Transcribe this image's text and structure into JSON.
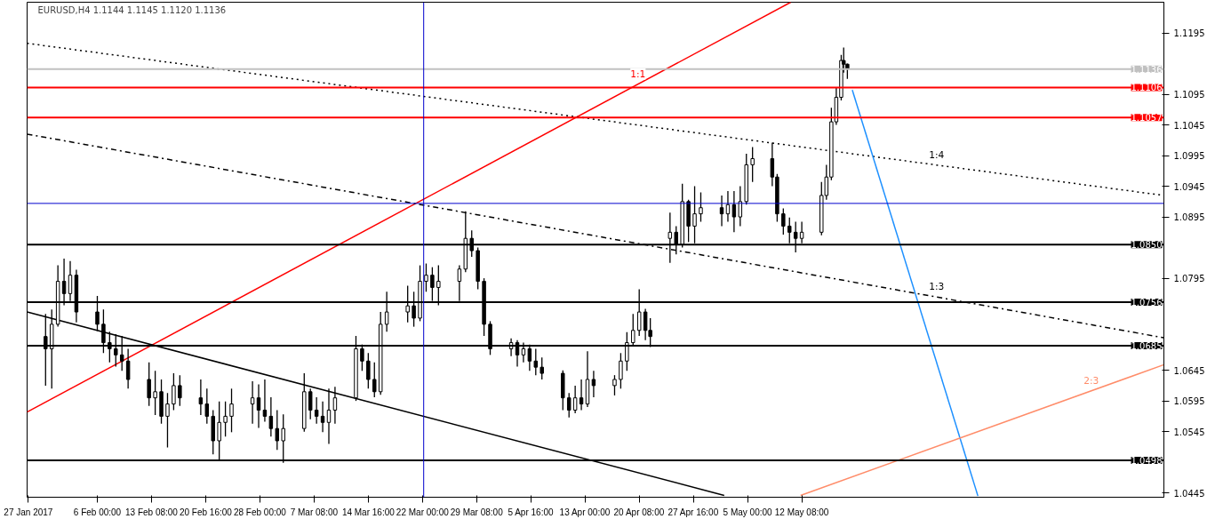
{
  "chart_data": {
    "type": "candlestick",
    "title": "EURUSD,H4  1.1144 1.1145 1.1120 1.1136",
    "x": [
      "2017-01-30T00:00",
      "2017-01-30T20:00",
      "2017-01-31T16:00",
      "2017-02-01T12:00",
      "2017-02-02T08:00",
      "2017-02-03T04:00",
      "2017-02-06T00:00",
      "2017-02-06T20:00",
      "2017-02-07T16:00",
      "2017-02-08T12:00",
      "2017-02-09T08:00",
      "2017-02-10T04:00",
      "2017-02-13T00:00",
      "2017-02-13T20:00",
      "2017-02-14T16:00",
      "2017-02-15T12:00",
      "2017-02-16T08:00",
      "2017-02-17T04:00",
      "2017-02-20T00:00",
      "2017-02-20T20:00",
      "2017-02-21T16:00",
      "2017-02-22T12:00",
      "2017-02-23T08:00",
      "2017-02-24T04:00",
      "2017-02-27T00:00",
      "2017-02-27T20:00",
      "2017-02-28T16:00",
      "2017-03-01T12:00",
      "2017-03-02T08:00",
      "2017-03-03T04:00",
      "2017-03-06T00:00",
      "2017-03-06T20:00",
      "2017-03-07T16:00",
      "2017-03-08T12:00",
      "2017-03-09T08:00",
      "2017-03-10T04:00",
      "2017-03-13T00:00",
      "2017-03-13T20:00",
      "2017-03-14T16:00",
      "2017-03-15T12:00",
      "2017-03-16T08:00",
      "2017-03-17T04:00",
      "2017-03-20T00:00",
      "2017-03-20T20:00",
      "2017-03-21T16:00",
      "2017-03-22T12:00",
      "2017-03-23T08:00",
      "2017-03-24T04:00",
      "2017-03-27T00:00",
      "2017-03-27T20:00",
      "2017-03-28T16:00",
      "2017-03-29T12:00",
      "2017-03-30T08:00",
      "2017-03-31T04:00",
      "2017-04-03T00:00",
      "2017-04-03T20:00",
      "2017-04-04T16:00",
      "2017-04-05T12:00",
      "2017-04-06T08:00",
      "2017-04-07T04:00",
      "2017-04-10T00:00",
      "2017-04-10T20:00",
      "2017-04-11T16:00",
      "2017-04-12T12:00",
      "2017-04-13T08:00",
      "2017-04-14T04:00",
      "2017-04-17T00:00",
      "2017-04-17T20:00",
      "2017-04-18T16:00",
      "2017-04-19T12:00",
      "2017-04-20T08:00",
      "2017-04-21T04:00",
      "2017-04-21T20:00",
      "2017-04-24T12:00",
      "2017-04-25T08:00",
      "2017-04-26T04:00",
      "2017-04-27T00:00",
      "2017-04-27T20:00",
      "2017-04-28T16:00",
      "2017-05-01T12:00",
      "2017-05-02T08:00",
      "2017-05-03T04:00",
      "2017-05-04T00:00",
      "2017-05-04T20:00",
      "2017-05-05T16:00",
      "2017-05-08T08:00",
      "2017-05-09T00:00",
      "2017-05-09T20:00",
      "2017-05-10T16:00",
      "2017-05-11T12:00",
      "2017-05-12T08:00",
      "2017-05-15T00:00",
      "2017-05-15T16:00",
      "2017-05-16T08:00",
      "2017-05-17T00:00",
      "2017-05-17T16:00",
      "2017-05-18T00:00",
      "2017-05-18T12:00"
    ],
    "ohlc": [
      [
        1.07,
        1.0737,
        1.062,
        1.068
      ],
      [
        1.068,
        1.0744,
        1.0615,
        1.072
      ],
      [
        1.072,
        1.0816,
        1.0716,
        1.079
      ],
      [
        1.079,
        1.0827,
        1.0751,
        1.077
      ],
      [
        1.077,
        1.0823,
        1.0758,
        1.08
      ],
      [
        1.08,
        1.0809,
        1.0723,
        1.074
      ],
      [
        1.074,
        1.0766,
        1.0709,
        1.072
      ],
      [
        1.072,
        1.0744,
        1.0673,
        1.069
      ],
      [
        1.069,
        1.0708,
        1.0658,
        1.068
      ],
      [
        1.068,
        1.0704,
        1.0651,
        1.067
      ],
      [
        1.067,
        1.0701,
        1.0644,
        1.066
      ],
      [
        1.066,
        1.068,
        1.0615,
        1.063
      ],
      [
        1.063,
        1.0658,
        1.0587,
        1.06
      ],
      [
        1.06,
        1.0644,
        1.0572,
        1.061
      ],
      [
        1.061,
        1.063,
        1.0558,
        1.057
      ],
      [
        1.057,
        1.0608,
        1.0519,
        1.059
      ],
      [
        1.059,
        1.064,
        1.058,
        1.062
      ],
      [
        1.062,
        1.0637,
        1.0587,
        1.06
      ],
      [
        1.06,
        1.063,
        1.0572,
        1.059
      ],
      [
        1.059,
        1.0615,
        1.0558,
        1.057
      ],
      [
        1.057,
        1.058,
        1.0508,
        1.053
      ],
      [
        1.053,
        1.0594,
        1.0498,
        1.056
      ],
      [
        1.056,
        1.0594,
        1.0537,
        1.057
      ],
      [
        1.057,
        1.0615,
        1.0544,
        1.059
      ],
      [
        1.059,
        1.0627,
        1.0558,
        1.06
      ],
      [
        1.06,
        1.0622,
        1.0551,
        1.058
      ],
      [
        1.058,
        1.063,
        1.0561,
        1.057
      ],
      [
        1.057,
        1.0601,
        1.0537,
        1.055
      ],
      [
        1.055,
        1.058,
        1.0515,
        1.053
      ],
      [
        1.053,
        1.0573,
        1.0494,
        1.055
      ],
      [
        1.055,
        1.064,
        1.0545,
        1.061
      ],
      [
        1.061,
        1.0615,
        1.0565,
        1.058
      ],
      [
        1.058,
        1.0601,
        1.0558,
        1.057
      ],
      [
        1.057,
        1.0594,
        1.0544,
        1.056
      ],
      [
        1.056,
        1.0615,
        1.0525,
        1.058
      ],
      [
        1.058,
        1.0618,
        1.0558,
        1.06
      ],
      [
        1.06,
        1.0701,
        1.0595,
        1.068
      ],
      [
        1.068,
        1.0687,
        1.0644,
        1.066
      ],
      [
        1.066,
        1.0673,
        1.0615,
        1.063
      ],
      [
        1.063,
        1.0658,
        1.0601,
        1.061
      ],
      [
        1.061,
        1.074,
        1.0605,
        1.072
      ],
      [
        1.072,
        1.0773,
        1.0708,
        1.074
      ],
      [
        1.074,
        1.0783,
        1.0723,
        1.075
      ],
      [
        1.075,
        1.0773,
        1.0716,
        1.073
      ],
      [
        1.073,
        1.0816,
        1.0725,
        1.079
      ],
      [
        1.079,
        1.0819,
        1.0773,
        1.08
      ],
      [
        1.08,
        1.0813,
        1.0758,
        1.078
      ],
      [
        1.078,
        1.0816,
        1.0751,
        1.079
      ],
      [
        1.079,
        1.0816,
        1.0758,
        1.081
      ],
      [
        1.081,
        1.0904,
        1.0805,
        1.086
      ],
      [
        1.086,
        1.0873,
        1.083,
        1.084
      ],
      [
        1.084,
        1.0845,
        1.0777,
        1.079
      ],
      [
        1.079,
        1.0795,
        1.0701,
        1.072
      ],
      [
        1.072,
        1.0725,
        1.067,
        1.068
      ],
      [
        1.068,
        1.0697,
        1.0668,
        1.069
      ],
      [
        1.069,
        1.0694,
        1.0651,
        1.067
      ],
      [
        1.067,
        1.069,
        1.0658,
        1.068
      ],
      [
        1.068,
        1.0687,
        1.0644,
        1.066
      ],
      [
        1.066,
        1.068,
        1.0637,
        1.065
      ],
      [
        1.065,
        1.0666,
        1.063,
        1.064
      ],
      [
        1.064,
        1.0645,
        1.058,
        1.06
      ],
      [
        1.06,
        1.0608,
        1.0568,
        1.058
      ],
      [
        1.058,
        1.062,
        1.0575,
        1.06
      ],
      [
        1.06,
        1.063,
        1.058,
        1.059
      ],
      [
        1.059,
        1.0676,
        1.0585,
        1.063
      ],
      [
        1.063,
        1.0644,
        1.0601,
        1.062
      ],
      [
        1.062,
        1.0637,
        1.0604,
        1.063
      ],
      [
        1.063,
        1.0673,
        1.0615,
        1.066
      ],
      [
        1.066,
        1.0707,
        1.0644,
        1.069
      ],
      [
        1.069,
        1.0737,
        1.0685,
        1.071
      ],
      [
        1.071,
        1.0777,
        1.0701,
        1.074
      ],
      [
        1.074,
        1.0745,
        1.0694,
        1.071
      ],
      [
        1.071,
        1.073,
        1.0683,
        1.07
      ],
      [
        1.086,
        1.0902,
        1.082,
        1.087
      ],
      [
        1.087,
        1.088,
        1.0834,
        1.085
      ],
      [
        1.085,
        1.0949,
        1.0845,
        1.092
      ],
      [
        1.092,
        1.0923,
        1.0854,
        1.088
      ],
      [
        1.088,
        1.0945,
        1.0852,
        1.09
      ],
      [
        1.09,
        1.0935,
        1.0887,
        1.091
      ],
      [
        1.091,
        1.093,
        1.088,
        1.09
      ],
      [
        1.09,
        1.0937,
        1.0887,
        1.0915
      ],
      [
        1.0915,
        1.0937,
        1.087,
        1.0895
      ],
      [
        1.0895,
        1.0945,
        1.088,
        1.092
      ],
      [
        1.092,
        1.0998,
        1.0915,
        1.098
      ],
      [
        1.098,
        1.1009,
        1.0952,
        1.099
      ],
      [
        1.099,
        1.1016,
        1.0945,
        1.096
      ],
      [
        1.096,
        1.0965,
        1.0887,
        1.09
      ],
      [
        1.09,
        1.0909,
        1.0866,
        1.088
      ],
      [
        1.088,
        1.0894,
        1.0852,
        1.087
      ],
      [
        1.087,
        1.0887,
        1.0837,
        1.086
      ],
      [
        1.086,
        1.0887,
        1.0852,
        1.087
      ],
      [
        1.087,
        1.0952,
        1.0865,
        1.093
      ],
      [
        1.093,
        1.098,
        1.0923,
        1.096
      ],
      [
        1.096,
        1.1073,
        1.0955,
        1.105
      ],
      [
        1.105,
        1.1106,
        1.1045,
        1.109
      ],
      [
        1.109,
        1.1159,
        1.1085,
        1.115
      ],
      [
        1.115,
        1.1171,
        1.113,
        1.1144
      ],
      [
        1.1144,
        1.1145,
        1.112,
        1.1136
      ]
    ],
    "series": [
      {
        "type": "line",
        "name": "1:1",
        "color": "#ff0000",
        "x": [
          "2017-01-27T12:00",
          "2017-05-10T20:00"
        ],
        "values": [
          1.0577,
          1.1245
        ]
      },
      {
        "type": "line",
        "color": "#000000",
        "x": [
          "2017-01-27T12:00",
          "2017-05-01T20:00"
        ],
        "values": [
          1.074,
          1.0441
        ]
      },
      {
        "type": "line",
        "name": "1:4",
        "color": "#000000",
        "line_style": "dotted",
        "x": [
          "2017-01-27T12:00",
          "2017-06-30T08:00"
        ],
        "values": [
          1.1178,
          1.093
        ]
      },
      {
        "type": "line",
        "name": "1:3",
        "color": "#000000",
        "line_style": "dashed",
        "x": [
          "2017-01-27T12:00",
          "2017-06-30T08:00"
        ],
        "values": [
          1.103,
          1.0698
        ]
      },
      {
        "type": "line",
        "color": "#1e90ff",
        "x": [
          "2017-05-19T04:00",
          "2017-06-05T04:00"
        ],
        "values": [
          1.1102,
          1.044
        ]
      },
      {
        "type": "line",
        "name": "2:3",
        "color": "#ff8c69",
        "x": [
          "2017-05-12T04:00",
          "2017-06-30T08:00"
        ],
        "values": [
          1.0441,
          1.0654
        ]
      }
    ],
    "ref_lines": [
      {
        "axis": "y",
        "value": 1.1136,
        "label": "1.1136",
        "color": "#c0c0c0"
      },
      {
        "axis": "y",
        "value": 1.1106,
        "label": "1.1106",
        "color": "#ff0000"
      },
      {
        "axis": "y",
        "value": 1.1057,
        "label": "1.1057",
        "color": "#ff0000"
      },
      {
        "axis": "y",
        "value": 1.085,
        "label": "1.0850",
        "color": "#000000"
      },
      {
        "axis": "y",
        "value": 1.0756,
        "label": "1.0756",
        "color": "#000000"
      },
      {
        "axis": "y",
        "value": 1.0685,
        "label": "1.0685",
        "color": "#000000"
      },
      {
        "axis": "y",
        "value": 1.0498,
        "label": "1.0498",
        "color": "#000000"
      },
      {
        "axis": "y",
        "value": 1.0917,
        "color": "#0000cd"
      },
      {
        "axis": "x",
        "value": "2017-03-22T04:00",
        "color": "#0000cd"
      }
    ],
    "xlim": [
      "2017-01-27T12:00",
      "2017-06-30T08:00"
    ],
    "ylim": [
      1.0438,
      1.1245
    ],
    "xticks": [
      {
        "value": "2017-01-27T16:00",
        "label": "27 Jan 2017"
      },
      {
        "value": "2017-02-06T00:00",
        "label": "6 Feb 00:00"
      },
      {
        "value": "2017-02-13T08:00",
        "label": "13 Feb 08:00"
      },
      {
        "value": "2017-02-20T16:00",
        "label": "20 Feb 16:00"
      },
      {
        "value": "2017-02-28T00:00",
        "label": "28 Feb 00:00"
      },
      {
        "value": "2017-03-07T08:00",
        "label": "7 Mar 08:00"
      },
      {
        "value": "2017-03-14T16:00",
        "label": "14 Mar 16:00"
      },
      {
        "value": "2017-03-22T00:00",
        "label": "22 Mar 00:00"
      },
      {
        "value": "2017-03-29T08:00",
        "label": "29 Mar 08:00"
      },
      {
        "value": "2017-04-05T16:00",
        "label": "5 Apr 16:00"
      },
      {
        "value": "2017-04-13T00:00",
        "label": "13 Apr 00:00"
      },
      {
        "value": "2017-04-20T08:00",
        "label": "20 Apr 08:00"
      },
      {
        "value": "2017-04-27T16:00",
        "label": "27 Apr 16:00"
      },
      {
        "value": "2017-05-05T00:00",
        "label": "5 May 00:00"
      },
      {
        "value": "2017-05-12T08:00",
        "label": "12 May 08:00"
      }
    ],
    "yticks": [
      1.1195,
      1.1095,
      1.1045,
      1.0995,
      1.0945,
      1.0895,
      1.0795,
      1.0645,
      1.0595,
      1.0545,
      1.0445
    ],
    "grid": false
  }
}
